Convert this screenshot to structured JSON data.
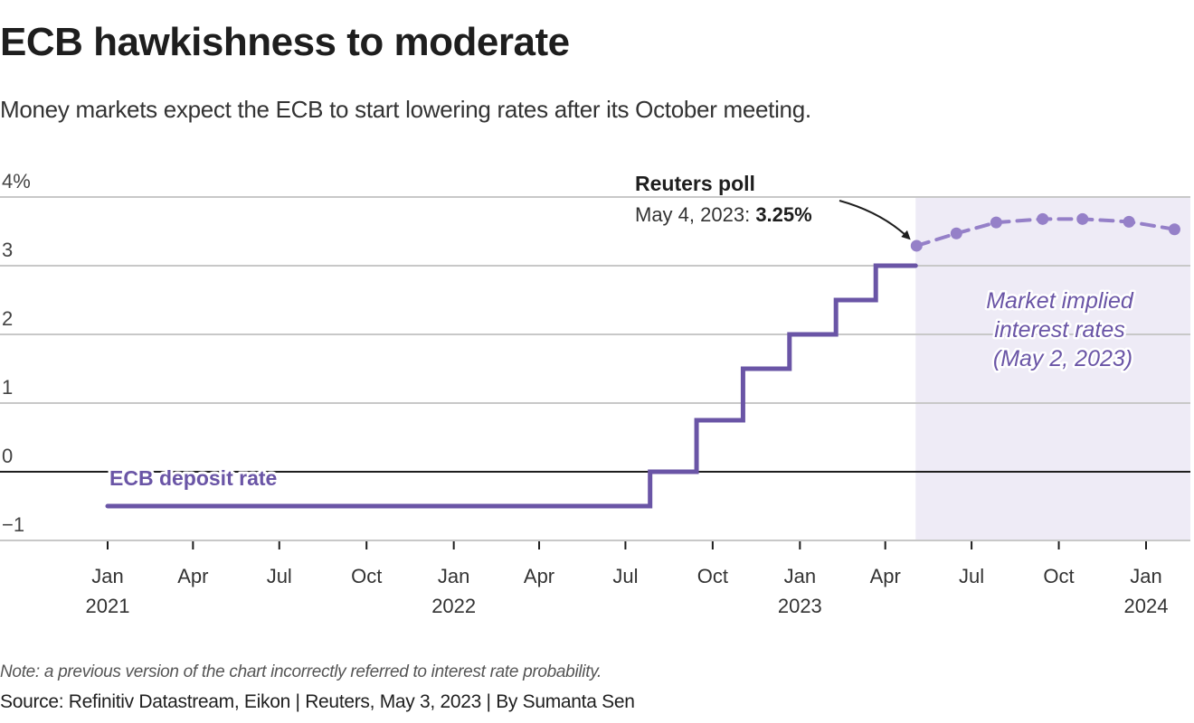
{
  "header": {
    "title": "ECB hawkishness to moderate",
    "subtitle": "Money markets expect the ECB to start lowering rates after its October meeting."
  },
  "footer": {
    "note": "Note: a previous version of the chart incorrectly referred to interest rate probability.",
    "source": "Source: Refinitiv Datastream, Eikon | Reuters, May 3, 2023 | By Sumanta Sen"
  },
  "colors": {
    "deposit_rate": "#6a55a6",
    "market_implied": "#9580c8",
    "shade": "#eeebf6",
    "text": "#1e1e1e"
  },
  "chart_data": {
    "type": "line",
    "title": "ECB hawkishness to moderate",
    "xlabel": "",
    "ylabel": "",
    "ylim": [
      -1,
      4
    ],
    "xlim": [
      "2021-01-01",
      "2024-02-29"
    ],
    "grid": true,
    "y_ticks": [
      {
        "value": 4,
        "label": "4%"
      },
      {
        "value": 3,
        "label": "3"
      },
      {
        "value": 2,
        "label": "2"
      },
      {
        "value": 1,
        "label": "1"
      },
      {
        "value": 0,
        "label": "0"
      },
      {
        "value": -1,
        "label": "−1"
      }
    ],
    "x_ticks": [
      {
        "date": "2021-01-01",
        "label": "Jan",
        "year": "2021"
      },
      {
        "date": "2021-04-01",
        "label": "Apr",
        "year": ""
      },
      {
        "date": "2021-07-01",
        "label": "Jul",
        "year": ""
      },
      {
        "date": "2021-10-01",
        "label": "Oct",
        "year": ""
      },
      {
        "date": "2022-01-01",
        "label": "Jan",
        "year": "2022"
      },
      {
        "date": "2022-04-01",
        "label": "Apr",
        "year": ""
      },
      {
        "date": "2022-07-01",
        "label": "Jul",
        "year": ""
      },
      {
        "date": "2022-10-01",
        "label": "Oct",
        "year": ""
      },
      {
        "date": "2023-01-01",
        "label": "Jan",
        "year": "2023"
      },
      {
        "date": "2023-04-01",
        "label": "Apr",
        "year": ""
      },
      {
        "date": "2023-07-01",
        "label": "Jul",
        "year": ""
      },
      {
        "date": "2023-10-01",
        "label": "Oct",
        "year": ""
      },
      {
        "date": "2024-01-01",
        "label": "Jan",
        "year": "2024"
      }
    ],
    "series": [
      {
        "name": "ECB deposit rate",
        "style": "step",
        "points": [
          {
            "date": "2021-01-01",
            "value": -0.5
          },
          {
            "date": "2022-07-27",
            "value": 0.0
          },
          {
            "date": "2022-09-14",
            "value": 0.75
          },
          {
            "date": "2022-11-02",
            "value": 1.5
          },
          {
            "date": "2022-12-21",
            "value": 2.0
          },
          {
            "date": "2023-02-08",
            "value": 2.5
          },
          {
            "date": "2023-03-22",
            "value": 3.0
          },
          {
            "date": "2023-05-03",
            "value": 3.0
          }
        ]
      },
      {
        "name": "Market implied interest rates (May 2, 2023)",
        "style": "dashed-markers",
        "points": [
          {
            "date": "2023-05-04",
            "value": 3.29
          },
          {
            "date": "2023-06-15",
            "value": 3.47
          },
          {
            "date": "2023-07-27",
            "value": 3.63
          },
          {
            "date": "2023-09-14",
            "value": 3.68
          },
          {
            "date": "2023-10-26",
            "value": 3.68
          },
          {
            "date": "2023-12-14",
            "value": 3.64
          },
          {
            "date": "2024-01-31",
            "value": 3.53
          }
        ]
      }
    ],
    "shaded_region": {
      "from": "2023-05-03",
      "to": "2024-02-29",
      "label": "Market implied interest rates (May 2, 2023)"
    },
    "annotations": {
      "series_label": "ECB deposit rate",
      "market_label_lines": [
        "Market implied",
        "interest rates",
        "(May 2, 2023)"
      ],
      "poll": {
        "title": "Reuters poll",
        "text": "May 4, 2023: ",
        "value_text": "3.25%",
        "date": "2023-05-04",
        "value": 3.25
      }
    }
  }
}
